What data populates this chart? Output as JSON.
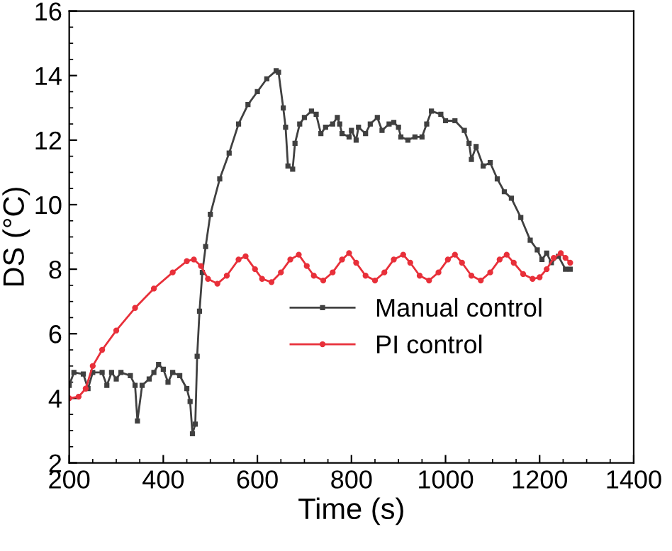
{
  "chart_data": {
    "type": "line",
    "xlabel": "Time (s)",
    "ylabel": "DS (°C)",
    "xlim": [
      200,
      1400
    ],
    "xticks": [
      200,
      400,
      600,
      800,
      1000,
      1200,
      1400
    ],
    "ylim": [
      2,
      16
    ],
    "yticks": [
      2,
      4,
      6,
      8,
      10,
      12,
      14,
      16
    ],
    "grid": false,
    "legend": "bottom right",
    "line_style": "solid",
    "series": [
      {
        "name": "Manual control",
        "color": "#404040",
        "marker": "square",
        "x": [
          200,
          210,
          230,
          240,
          250,
          270,
          280,
          290,
          300,
          310,
          330,
          340,
          345,
          355,
          370,
          380,
          390,
          400,
          410,
          420,
          435,
          450,
          457,
          462,
          468,
          472,
          477,
          483,
          490,
          500,
          520,
          540,
          560,
          580,
          600,
          620,
          640,
          645,
          655,
          660,
          665,
          675,
          680,
          690,
          700,
          715,
          725,
          735,
          745,
          760,
          770,
          775,
          780,
          795,
          800,
          810,
          815,
          830,
          840,
          855,
          865,
          880,
          890,
          900,
          905,
          920,
          935,
          950,
          960,
          970,
          990,
          1000,
          1020,
          1040,
          1050,
          1055,
          1065,
          1080,
          1095,
          1110,
          1125,
          1140,
          1160,
          1180,
          1195,
          1205,
          1215,
          1225,
          1240,
          1255,
          1265
        ],
        "values": [
          4.4,
          4.8,
          4.75,
          4.3,
          4.8,
          4.8,
          4.4,
          4.8,
          4.6,
          4.8,
          4.7,
          4.4,
          3.3,
          4.4,
          4.6,
          4.8,
          5.05,
          4.9,
          4.5,
          4.8,
          4.7,
          4.3,
          3.9,
          2.9,
          3.2,
          5.3,
          6.7,
          7.9,
          8.7,
          9.7,
          10.8,
          11.6,
          12.5,
          13.1,
          13.5,
          13.9,
          14.15,
          14.1,
          13.0,
          12.4,
          11.2,
          11.1,
          11.9,
          12.5,
          12.7,
          12.9,
          12.8,
          12.2,
          12.4,
          12.5,
          12.7,
          12.5,
          12.2,
          12.1,
          12.3,
          12.0,
          12.4,
          12.2,
          12.5,
          12.7,
          12.3,
          12.5,
          12.55,
          12.4,
          12.1,
          12.0,
          12.1,
          12.1,
          12.5,
          12.9,
          12.8,
          12.6,
          12.6,
          12.3,
          11.9,
          11.4,
          11.8,
          11.2,
          11.3,
          10.8,
          10.4,
          10.2,
          9.6,
          8.9,
          8.6,
          8.3,
          8.5,
          8.2,
          8.4,
          8.0,
          8.0
        ]
      },
      {
        "name": "PI control",
        "color": "#e8303a",
        "marker": "circle",
        "x": [
          200,
          220,
          235,
          250,
          270,
          300,
          340,
          380,
          420,
          450,
          465,
          480,
          495,
          515,
          535,
          560,
          575,
          595,
          610,
          630,
          650,
          670,
          688,
          705,
          720,
          740,
          760,
          780,
          795,
          810,
          830,
          850,
          870,
          890,
          910,
          925,
          945,
          965,
          985,
          1005,
          1020,
          1035,
          1055,
          1075,
          1095,
          1115,
          1130,
          1145,
          1165,
          1185,
          1200,
          1215,
          1230,
          1245,
          1255,
          1265
        ],
        "values": [
          4.0,
          4.05,
          4.3,
          5.0,
          5.5,
          6.1,
          6.8,
          7.4,
          7.9,
          8.25,
          8.3,
          8.1,
          7.7,
          7.55,
          7.8,
          8.3,
          8.4,
          8.0,
          7.7,
          7.6,
          7.9,
          8.3,
          8.45,
          8.1,
          7.8,
          7.65,
          7.9,
          8.3,
          8.5,
          8.2,
          7.8,
          7.65,
          7.9,
          8.3,
          8.45,
          8.2,
          7.8,
          7.65,
          7.9,
          8.3,
          8.45,
          8.2,
          7.8,
          7.65,
          7.9,
          8.3,
          8.45,
          8.2,
          7.85,
          7.7,
          7.75,
          8.0,
          8.35,
          8.5,
          8.35,
          8.2
        ]
      }
    ]
  }
}
